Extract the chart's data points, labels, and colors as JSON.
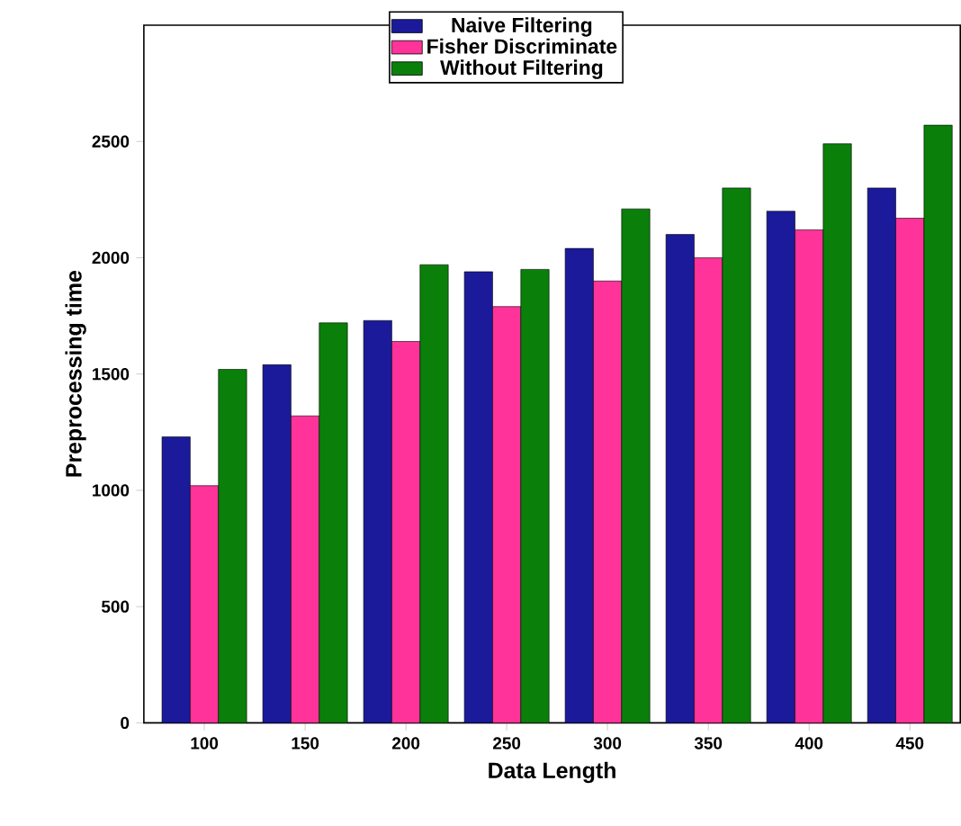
{
  "chart_data": {
    "type": "bar",
    "xlabel": "Data Length",
    "ylabel": "Preprocessing time",
    "categories": [
      "100",
      "150",
      "200",
      "250",
      "300",
      "350",
      "400",
      "450"
    ],
    "series": [
      {
        "name": "Naive  Filtering",
        "color": "#1a1a9a",
        "values": [
          1230,
          1540,
          1730,
          1940,
          2040,
          2100,
          2200,
          2300
        ]
      },
      {
        "name": "Fisher Discriminate",
        "color": "#ff3399",
        "values": [
          1020,
          1320,
          1640,
          1790,
          1900,
          2000,
          2120,
          2170
        ]
      },
      {
        "name": "Without Filtering",
        "color": "#0a800a",
        "values": [
          1520,
          1720,
          1970,
          1950,
          2210,
          2300,
          2490,
          2570
        ]
      }
    ],
    "ylim": [
      0,
      3000
    ],
    "yticks": [
      0,
      500,
      1000,
      1500,
      2000,
      2500
    ],
    "grid": false,
    "legend": "top"
  }
}
